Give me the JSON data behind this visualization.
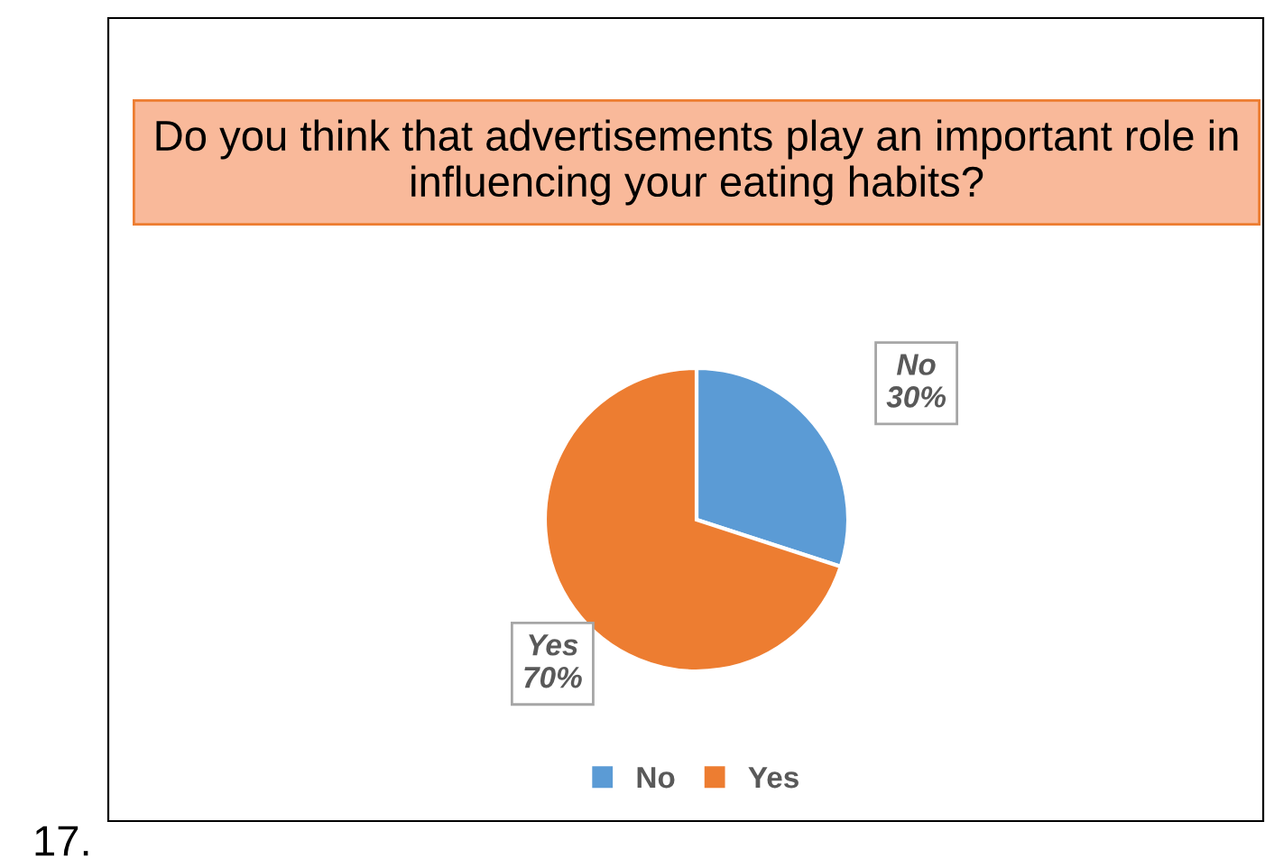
{
  "chart_data": {
    "type": "pie",
    "title": "Do you think that advertisements play an important role in influencing your eating habits?",
    "categories": [
      "No",
      "Yes"
    ],
    "values": [
      30,
      70
    ],
    "colors": [
      "#5b9bd5",
      "#ed7d31"
    ],
    "value_labels": [
      "30%",
      "70%"
    ],
    "legend": "bottom",
    "annotations": [
      "17."
    ]
  }
}
